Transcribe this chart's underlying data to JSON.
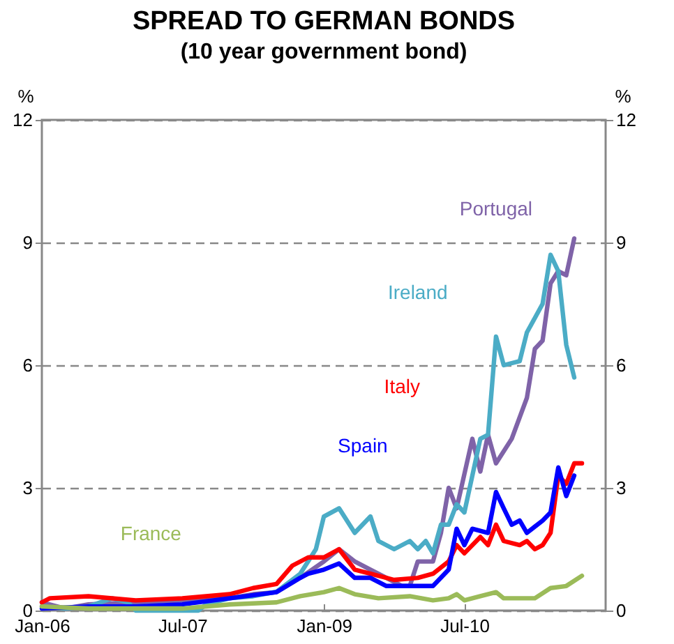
{
  "chart_data": {
    "type": "line",
    "title": "SPREAD TO GERMAN BONDS",
    "subtitle": "(10 year government bond)",
    "ylabel": "%",
    "y2label": "%",
    "xlim": [
      "2006-01",
      "2012-01"
    ],
    "xticks": [
      {
        "value": "2006-01",
        "label": "Jan-06"
      },
      {
        "value": "2007-07",
        "label": "Jul-07"
      },
      {
        "value": "2009-01",
        "label": "Jan-09"
      },
      {
        "value": "2010-07",
        "label": "Jul-10"
      }
    ],
    "ylim": [
      0,
      12
    ],
    "yticks": [
      0,
      3,
      6,
      9,
      12
    ],
    "y2lim": [
      0,
      12
    ],
    "y2ticks": [
      0,
      3,
      6,
      9,
      12
    ],
    "grid": "y",
    "legend": false,
    "line_style": "solid",
    "marker": "none",
    "series": [
      {
        "name": "Portugal",
        "color": "#7f63a8",
        "x": [
          "2006-01",
          "2006-04",
          "2006-07",
          "2007-01",
          "2007-07",
          "2008-01",
          "2008-04",
          "2008-07",
          "2008-10",
          "2009-01",
          "2009-03",
          "2009-05",
          "2009-07",
          "2009-09",
          "2009-11",
          "2009-12",
          "2010-01",
          "2010-03",
          "2010-04",
          "2010-05",
          "2010-06",
          "2010-08",
          "2010-09",
          "2010-10",
          "2010-11",
          "2011-01",
          "2011-03",
          "2011-04",
          "2011-05",
          "2011-06",
          "2011-07",
          "2011-08",
          "2011-09"
        ],
        "values": [
          0.2,
          0.05,
          0.15,
          0.2,
          0.25,
          0.3,
          0.4,
          0.45,
          0.8,
          1.2,
          1.5,
          1.2,
          1.0,
          0.8,
          0.6,
          0.6,
          1.2,
          1.2,
          1.9,
          3.0,
          2.5,
          4.2,
          3.4,
          4.3,
          3.6,
          4.2,
          5.2,
          6.4,
          6.6,
          8.0,
          8.3,
          8.2,
          9.1
        ]
      },
      {
        "name": "Ireland",
        "color": "#4bacc6",
        "x": [
          "2006-01",
          "2006-04",
          "2006-07",
          "2006-10",
          "2006-12",
          "2007-01",
          "2007-09",
          "2007-10",
          "2008-01",
          "2008-04",
          "2008-07",
          "2008-10",
          "2008-12",
          "2009-01",
          "2009-03",
          "2009-05",
          "2009-07",
          "2009-08",
          "2009-10",
          "2009-12",
          "2010-01",
          "2010-02",
          "2010-03",
          "2010-04",
          "2010-05",
          "2010-06",
          "2010-07",
          "2010-09",
          "2010-10",
          "2010-11",
          "2010-12",
          "2011-02",
          "2011-03",
          "2011-05",
          "2011-06",
          "2011-07",
          "2011-08",
          "2011-09"
        ],
        "values": [
          0.1,
          0.05,
          0.1,
          0.3,
          0.2,
          0,
          0,
          0.15,
          0.3,
          0.35,
          0.46,
          0.9,
          1.5,
          2.3,
          2.5,
          1.9,
          2.3,
          1.7,
          1.5,
          1.7,
          1.5,
          1.7,
          1.4,
          2.1,
          2.1,
          2.6,
          2.4,
          4.2,
          4.3,
          6.7,
          6.0,
          6.1,
          6.8,
          7.5,
          8.7,
          8.3,
          6.5,
          5.7
        ]
      },
      {
        "name": "Italy",
        "color": "#ff0000",
        "x": [
          "2006-01",
          "2006-02",
          "2006-07",
          "2007-01",
          "2007-07",
          "2007-10",
          "2008-01",
          "2008-04",
          "2008-07",
          "2008-09",
          "2008-11",
          "2009-01",
          "2009-03",
          "2009-05",
          "2009-07",
          "2009-10",
          "2010-01",
          "2010-03",
          "2010-05",
          "2010-06",
          "2010-07",
          "2010-09",
          "2010-10",
          "2010-11",
          "2010-12",
          "2011-02",
          "2011-03",
          "2011-04",
          "2011-05",
          "2011-06",
          "2011-07",
          "2011-08",
          "2011-09",
          "2011-10"
        ],
        "values": [
          0.2,
          0.3,
          0.35,
          0.25,
          0.3,
          0.35,
          0.4,
          0.55,
          0.65,
          1.1,
          1.3,
          1.3,
          1.5,
          1.0,
          0.9,
          0.75,
          0.8,
          0.9,
          1.2,
          1.6,
          1.4,
          1.8,
          1.6,
          2.1,
          1.7,
          1.6,
          1.7,
          1.5,
          1.6,
          1.9,
          3.3,
          3.1,
          3.6,
          3.6
        ]
      },
      {
        "name": "Spain",
        "color": "#0000ff",
        "x": [
          "2006-01",
          "2006-07",
          "2007-01",
          "2007-07",
          "2008-01",
          "2008-07",
          "2008-10",
          "2008-11",
          "2009-01",
          "2009-03",
          "2009-05",
          "2009-07",
          "2009-09",
          "2009-12",
          "2010-03",
          "2010-05",
          "2010-06",
          "2010-07",
          "2010-08",
          "2010-10",
          "2010-11",
          "2010-12",
          "2011-01",
          "2011-02",
          "2011-03",
          "2011-05",
          "2011-06",
          "2011-07",
          "2011-08",
          "2011-09"
        ],
        "values": [
          0.05,
          0.1,
          0.1,
          0.15,
          0.3,
          0.45,
          0.8,
          0.9,
          1.0,
          1.15,
          0.8,
          0.8,
          0.6,
          0.6,
          0.6,
          1.0,
          2.0,
          1.6,
          2.0,
          1.9,
          2.9,
          2.5,
          2.1,
          2.2,
          1.9,
          2.2,
          2.4,
          3.5,
          2.8,
          3.3
        ]
      },
      {
        "name": "France",
        "color": "#9bbb59",
        "x": [
          "2006-01",
          "2006-07",
          "2007-01",
          "2007-07",
          "2008-01",
          "2008-07",
          "2008-10",
          "2009-01",
          "2009-03",
          "2009-05",
          "2009-08",
          "2009-12",
          "2010-03",
          "2010-05",
          "2010-06",
          "2010-07",
          "2010-09",
          "2010-11",
          "2010-12",
          "2011-04",
          "2011-06",
          "2011-08",
          "2011-10"
        ],
        "values": [
          0.1,
          0.05,
          0.05,
          0.05,
          0.15,
          0.2,
          0.35,
          0.45,
          0.55,
          0.4,
          0.3,
          0.35,
          0.25,
          0.3,
          0.4,
          0.25,
          0.35,
          0.45,
          0.3,
          0.3,
          0.55,
          0.6,
          0.85
        ]
      }
    ]
  }
}
